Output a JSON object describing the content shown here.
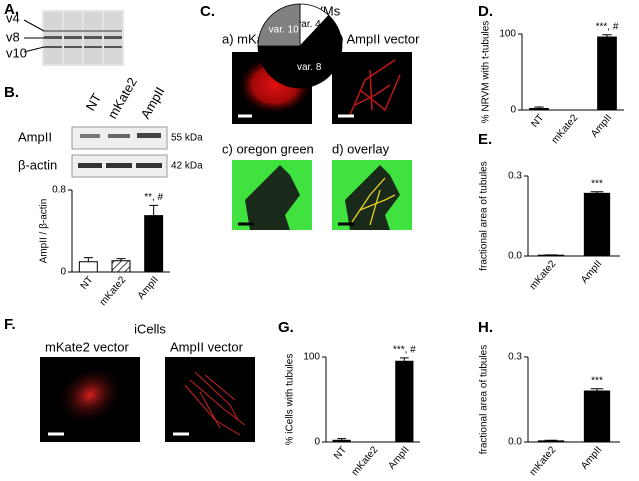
{
  "panel_labels": [
    "A.",
    "B.",
    "C.",
    "D.",
    "E.",
    "F.",
    "G.",
    "H."
  ],
  "blot_a": {
    "labels": [
      "v4",
      "v8",
      "v10"
    ]
  },
  "blot_b": {
    "columns": [
      "NT",
      "mKate2",
      "AmpII"
    ],
    "rows": [
      "AmpII",
      "β-actin"
    ],
    "sizes": [
      "55 kDa",
      "42 kDa"
    ]
  },
  "images_c": {
    "title": "NRVMs",
    "captions": [
      "a) mKate2 vector",
      "b) AmpII vector",
      "c) oregon green",
      "d) overlay"
    ]
  },
  "images_f": {
    "title": "iCells",
    "captions": [
      "mKate2 vector",
      "AmpII vector"
    ]
  },
  "chart_data": [
    {
      "type": "pie",
      "categories": [
        "var. 4",
        "var. 8",
        "var. 10"
      ],
      "values": [
        12,
        63,
        25
      ],
      "colors": [
        "#ffffff",
        "#000000",
        "#808080"
      ]
    },
    {
      "type": "bar",
      "categories": [
        "NT",
        "mKate2",
        "AmpII"
      ],
      "values": [
        0.1,
        0.11,
        0.55
      ],
      "errors": [
        0.04,
        0.02,
        0.1
      ],
      "colors": [
        "#ffffff",
        "#ffffff",
        "#000000"
      ],
      "hatched": [
        false,
        true,
        false
      ],
      "ylabel": "AmpII / β-actin",
      "ylim": [
        0,
        0.8
      ],
      "yticks": [
        0,
        0.8
      ],
      "annotation": "**, #"
    },
    {
      "type": "bar",
      "categories": [
        "NT",
        "mKate2",
        "AmpII"
      ],
      "values": [
        2,
        0,
        96
      ],
      "errors": [
        2,
        0,
        3
      ],
      "colors": [
        "#000000",
        "#000000",
        "#000000"
      ],
      "ylabel": "% NRVM with t-tubules",
      "ylim": [
        0,
        100
      ],
      "yticks": [
        0,
        100
      ],
      "annotation": "***, #"
    },
    {
      "type": "bar",
      "categories": [
        "mKate2",
        "AmpII"
      ],
      "values": [
        0.003,
        0.235
      ],
      "errors": [
        0.001,
        0.006
      ],
      "colors": [
        "#000000",
        "#000000"
      ],
      "ylabel": "fractional area of tubules",
      "ylim": [
        0,
        0.3
      ],
      "yticks": [
        {
          "value": 0,
          "label": "0.0"
        },
        0.3
      ],
      "annotation": "***"
    },
    {
      "type": "bar",
      "categories": [
        "NT",
        "mKate2",
        "AmpII"
      ],
      "values": [
        2,
        0,
        95
      ],
      "errors": [
        2,
        0,
        4
      ],
      "colors": [
        "#000000",
        "#000000",
        "#000000"
      ],
      "ylabel": "% iCells with tubules",
      "ylim": [
        0,
        100
      ],
      "yticks": [
        0,
        100
      ],
      "annotation": "***, #"
    },
    {
      "type": "bar",
      "categories": [
        "mKate2",
        "AmpII"
      ],
      "values": [
        0.004,
        0.18
      ],
      "errors": [
        0.002,
        0.008
      ],
      "colors": [
        "#000000",
        "#000000"
      ],
      "ylabel": "fractional area of tubules",
      "ylim": [
        0,
        0.3
      ],
      "yticks": [
        {
          "value": 0,
          "label": "0.0"
        },
        0.3
      ],
      "annotation": "***"
    }
  ]
}
